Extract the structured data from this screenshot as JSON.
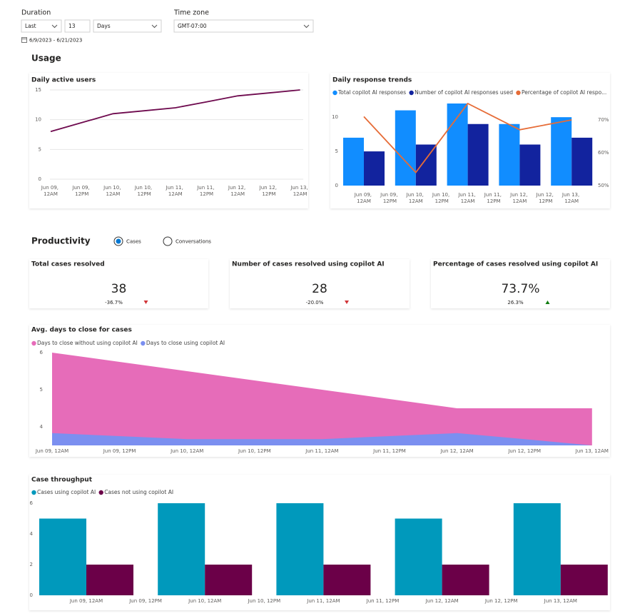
{
  "filters": {
    "duration_label": "Duration",
    "duration_mode": "Last",
    "duration_count": "13",
    "duration_unit": "Days",
    "timezone_label": "Time zone",
    "timezone": "GMT-07:00",
    "date_range": "6/9/2023 - 6/21/2023"
  },
  "sections": {
    "usage": "Usage",
    "productivity": "Productivity"
  },
  "productivity_options": [
    {
      "label": "Cases",
      "selected": true
    },
    {
      "label": "Conversations",
      "selected": false
    }
  ],
  "kpis": [
    {
      "title": "Total cases resolved",
      "value": 38,
      "change": "-36.7%",
      "trend": "down"
    },
    {
      "title": "Number of cases resolved using copilot AI",
      "value": 28,
      "change": "-20.0%",
      "trend": "down"
    },
    {
      "title": "Percentage of cases resolved using copilot AI",
      "value": "73.7%",
      "change": "26.3%",
      "trend": "up"
    }
  ],
  "chart_data": [
    {
      "type": "line",
      "title": "Daily active users",
      "categories": [
        "Jun 09, 12AM",
        "Jun 09, 12PM",
        "Jun 10, 12AM",
        "Jun 10, 12PM",
        "Jun 11, 12AM",
        "Jun 11, 12PM",
        "Jun 12, 12AM",
        "Jun 12, 12PM",
        "Jun 13, 12AM"
      ],
      "values": [
        8,
        9.5,
        11,
        11.5,
        12,
        13,
        14,
        14.5,
        15
      ],
      "color": "#6e0a4e",
      "ylim": [
        0,
        15
      ],
      "yticks": [
        0,
        5,
        10,
        15
      ],
      "grid": true
    },
    {
      "type": "bar",
      "title": "Daily response trends",
      "categories": [
        "Jun 09, 12AM",
        "Jun 09, 12PM",
        "Jun 10, 12AM",
        "Jun 10, 12PM",
        "Jun 11, 12AM",
        "Jun 11, 12PM",
        "Jun 12, 12AM",
        "Jun 12, 12PM",
        "Jun 13, 12AM"
      ],
      "series": [
        {
          "name": "Total copilot AI responses",
          "color": "#118dff",
          "values": [
            7,
            null,
            11,
            null,
            12,
            null,
            9,
            null,
            10
          ]
        },
        {
          "name": "Number of copilot AI responses used",
          "color": "#12239e",
          "values": [
            5,
            null,
            6,
            null,
            9,
            null,
            6,
            null,
            7
          ]
        },
        {
          "name": "Percentage of copilot AI respo...",
          "color": "#e66c37",
          "type": "line",
          "axis": "y2",
          "values": [
            71,
            62.5,
            54,
            64.5,
            75,
            71,
            67,
            68.5,
            70
          ]
        }
      ],
      "ylim": [
        0,
        12
      ],
      "yticks": [
        0,
        5,
        10
      ],
      "y2lim": [
        50,
        75
      ],
      "y2ticks": [
        {
          "value": 50,
          "label": "50%"
        },
        {
          "value": 60,
          "label": "60%"
        },
        {
          "value": 70,
          "label": "70%"
        }
      ],
      "grid": false,
      "legend": "top-left"
    },
    {
      "type": "area",
      "title": "Avg. days to close for cases",
      "categories": [
        "Jun 09, 12AM",
        "Jun 09, 12PM",
        "Jun 10, 12AM",
        "Jun 10, 12PM",
        "Jun 11, 12AM",
        "Jun 11, 12PM",
        "Jun 12, 12AM",
        "Jun 12, 12PM",
        "Jun 13, 12AM"
      ],
      "series": [
        {
          "name": "Days to close without using copilot AI",
          "color": "#e66cb9",
          "values": [
            6,
            5.75,
            5.5,
            5.25,
            5,
            4.75,
            4.5,
            4.5,
            4.5
          ]
        },
        {
          "name": "Days to close using copilot AI",
          "color": "#7b8ff0",
          "values": [
            3.83,
            3.75,
            3.67,
            3.67,
            3.67,
            3.75,
            3.83,
            3.67,
            3.5
          ]
        }
      ],
      "ylim": [
        3.5,
        6
      ],
      "yticks": [
        4,
        5,
        6
      ],
      "grid": false,
      "legend": "top-left"
    },
    {
      "type": "bar",
      "title": "Case throughput",
      "categories": [
        "Jun 09, 12AM",
        "Jun 09, 12PM",
        "Jun 10, 12AM",
        "Jun 10, 12PM",
        "Jun 11, 12AM",
        "Jun 11, 12PM",
        "Jun 12, 12AM",
        "Jun 12, 12PM",
        "Jun 13, 12AM"
      ],
      "series": [
        {
          "name": "Cases using copilot AI",
          "color": "#0099bc",
          "values": [
            5,
            null,
            6,
            null,
            6,
            null,
            5,
            null,
            6
          ]
        },
        {
          "name": "Cases not using copilot AI",
          "color": "#6b0048",
          "values": [
            2,
            null,
            2,
            null,
            2,
            null,
            2,
            null,
            2
          ]
        }
      ],
      "ylim": [
        0,
        6
      ],
      "yticks": [
        0,
        2,
        4,
        6
      ],
      "grid": false,
      "legend": "top-left"
    }
  ]
}
